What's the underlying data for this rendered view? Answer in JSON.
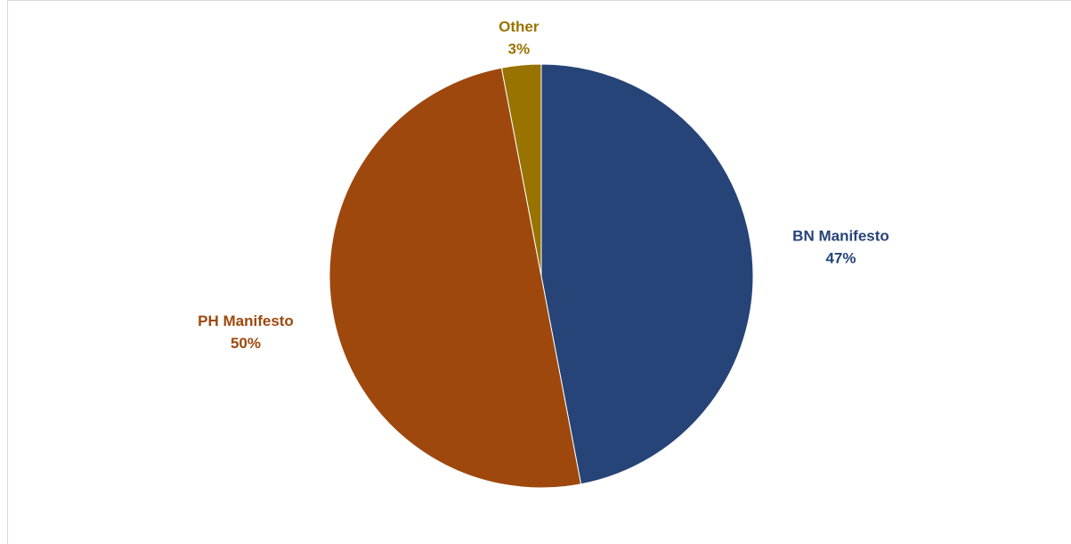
{
  "chart_data": {
    "type": "pie",
    "categories": [
      "BN Manifesto",
      "PH Manifesto",
      "Other"
    ],
    "values": [
      47,
      50,
      3
    ],
    "value_labels": [
      "47%",
      "50%",
      "3%"
    ],
    "colors": [
      "#264478",
      "#9e480e",
      "#997300"
    ]
  }
}
